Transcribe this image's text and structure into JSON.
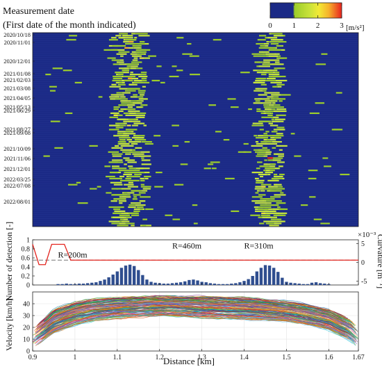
{
  "chart_data": [
    {
      "type": "heatmap",
      "title": "Measurement date",
      "subtitle": "(First date of the month indicated)",
      "colorbar": {
        "ticks": [
          "0",
          "1",
          "2",
          "3"
        ],
        "unit": "[m/s²]",
        "range": [
          0,
          3
        ],
        "colors": [
          "#1b2a86",
          "#1b2a86",
          "#9ccd2a",
          "#c8e23a",
          "#f2ea35",
          "#f6b12a",
          "#e8231e"
        ]
      },
      "y_dates": [
        "2020/10/18",
        "2020/11/01",
        "2020/12/01",
        "2021/01/08",
        "2021/02/03",
        "2021/03/08",
        "2021/04/05",
        "2021/05/13",
        "2021/06/29",
        "2021/08/27",
        "2021/09/08",
        "2021/10/09",
        "2021/11/06",
        "2021/12/01",
        "2022/03/25",
        "2022/07/08",
        "2022/08/01"
      ],
      "x_range": [
        0.9,
        1.67
      ],
      "hot_bands_km": [
        [
          1.09,
          1.17
        ],
        [
          1.43,
          1.49
        ]
      ],
      "background_color": "#1b2a86"
    },
    {
      "type": "bar",
      "ylabel": "Number of detection [-]",
      "ylabel_right": "Curvature [m⁻¹]",
      "right_exponent": "×10⁻³",
      "ylim": [
        0,
        1
      ],
      "yticks": [
        "0",
        "0.2",
        "0.4",
        "0.6",
        "0.8",
        "1"
      ],
      "ylim_right": [
        -6,
        6
      ],
      "yticks_right": [
        "-5",
        "0",
        "5"
      ],
      "bar_color": "#2f4e8f",
      "x": [
        0.96,
        0.97,
        0.98,
        0.99,
        1.0,
        1.01,
        1.02,
        1.03,
        1.04,
        1.05,
        1.06,
        1.07,
        1.08,
        1.09,
        1.1,
        1.11,
        1.12,
        1.13,
        1.14,
        1.15,
        1.16,
        1.17,
        1.18,
        1.19,
        1.2,
        1.21,
        1.22,
        1.23,
        1.24,
        1.25,
        1.26,
        1.27,
        1.28,
        1.29,
        1.3,
        1.31,
        1.32,
        1.33,
        1.34,
        1.35,
        1.36,
        1.37,
        1.38,
        1.39,
        1.4,
        1.41,
        1.42,
        1.43,
        1.44,
        1.45,
        1.46,
        1.47,
        1.48,
        1.49,
        1.5,
        1.51,
        1.52,
        1.53,
        1.54,
        1.55,
        1.56,
        1.57,
        1.58,
        1.59,
        1.6
      ],
      "values": [
        0.02,
        0.02,
        0.03,
        0.02,
        0.02,
        0.03,
        0.03,
        0.04,
        0.05,
        0.06,
        0.09,
        0.12,
        0.17,
        0.23,
        0.3,
        0.38,
        0.43,
        0.45,
        0.42,
        0.33,
        0.22,
        0.12,
        0.07,
        0.05,
        0.04,
        0.03,
        0.03,
        0.04,
        0.05,
        0.06,
        0.08,
        0.11,
        0.12,
        0.1,
        0.07,
        0.06,
        0.04,
        0.03,
        0.02,
        0.02,
        0.02,
        0.03,
        0.04,
        0.06,
        0.09,
        0.13,
        0.2,
        0.3,
        0.38,
        0.44,
        0.43,
        0.38,
        0.29,
        0.16,
        0.07,
        0.05,
        0.04,
        0.03,
        0.02,
        0.02,
        0.05,
        0.06,
        0.04,
        0.03,
        0.02
      ],
      "curvature_profile": {
        "color": "#e3231d",
        "x": [
          0.9,
          0.915,
          0.93,
          0.945,
          0.96,
          0.975,
          0.99,
          1.01,
          1.23,
          1.26,
          1.32,
          1.35,
          1.39,
          1.41,
          1.48,
          1.5,
          1.67
        ],
        "y": [
          -5.0,
          -5.0,
          -5.0,
          -5.0,
          -5.0,
          -2.5,
          0.0,
          0.0,
          0.0,
          2.2,
          2.2,
          0.0,
          0.0,
          3.2,
          3.2,
          0.0,
          0.0
        ],
        "y_shape": [
          0.9,
          0.45,
          0.45,
          0.9,
          0.9,
          0.9,
          0.55,
          0.55,
          0.55,
          0.55,
          0.55,
          0.55,
          0.55,
          0.55,
          0.55,
          0.55,
          0.55
        ]
      },
      "reference_line": {
        "value": 0.55,
        "style": "dashed",
        "color": "#777777"
      },
      "annotations": [
        {
          "text": "R=200m",
          "x": 0.96,
          "y": 0.67
        },
        {
          "text": "R=460m",
          "x": 1.23,
          "y": 0.87
        },
        {
          "text": "R=310m",
          "x": 1.4,
          "y": 0.87
        }
      ]
    },
    {
      "type": "line",
      "ylabel": "Velocity [km/h]",
      "xlabel": "Distance [km]",
      "xlim": [
        0.9,
        1.67
      ],
      "ylim": [
        0,
        50
      ],
      "xticks": [
        "0.9",
        "1",
        "1.1",
        "1.2",
        "1.3",
        "1.4",
        "1.5",
        "1.6",
        "1.67"
      ],
      "yticks": [
        "0",
        "10",
        "20",
        "30",
        "40"
      ],
      "series_count": 150,
      "envelope": {
        "x": [
          0.9,
          0.93,
          0.95,
          1.0,
          1.05,
          1.1,
          1.2,
          1.3,
          1.4,
          1.5,
          1.55,
          1.6,
          1.65,
          1.67
        ],
        "upper": [
          19,
          28,
          35,
          41,
          44,
          45,
          46,
          46,
          45,
          42,
          39,
          35,
          27,
          20
        ],
        "mean": [
          11,
          20,
          25,
          32,
          35,
          37,
          38,
          37,
          36,
          34,
          31,
          27,
          18,
          10
        ],
        "lower": [
          3,
          10,
          15,
          22,
          26,
          28,
          30,
          28,
          27,
          25,
          22,
          18,
          9,
          2
        ]
      }
    }
  ]
}
